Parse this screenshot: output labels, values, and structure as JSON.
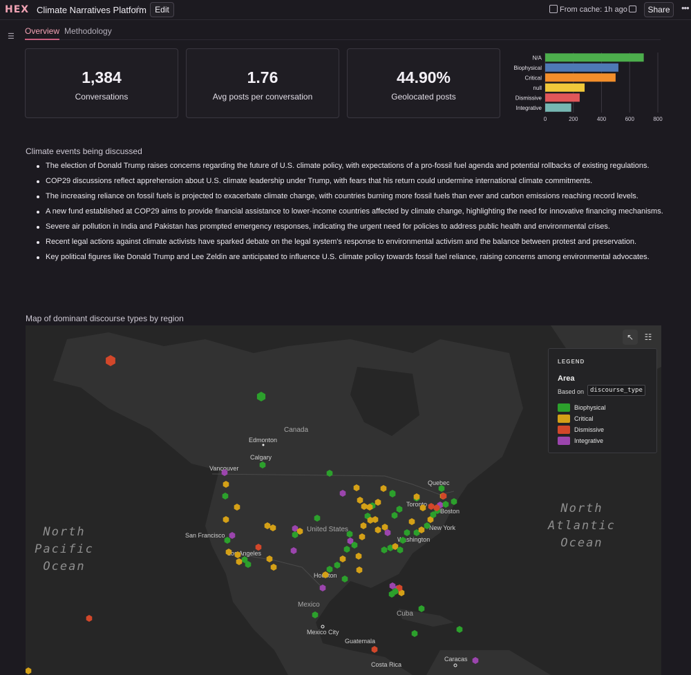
{
  "header": {
    "logo": "HEX",
    "title": "Climate Narratives Platform",
    "edit_label": "Edit",
    "cache_status": "From cache: 1h ago",
    "share_label": "Share"
  },
  "tabs": [
    {
      "label": "Overview",
      "active": true
    },
    {
      "label": "Methodology",
      "active": false
    }
  ],
  "metrics": [
    {
      "value": "1,384",
      "label": "Conversations"
    },
    {
      "value": "1.76",
      "label": "Avg posts per conversation"
    },
    {
      "value": "44.90%",
      "label": "Geolocated posts"
    }
  ],
  "chart_data": {
    "type": "bar",
    "orientation": "horizontal",
    "categories": [
      "N/A",
      "Biophysical",
      "Critical",
      "null",
      "Dismissive",
      "Integrative"
    ],
    "values": [
      700,
      520,
      500,
      280,
      245,
      185
    ],
    "colors": [
      "#4cae4c",
      "#4e79b5",
      "#f28e2b",
      "#f0c83a",
      "#e15759",
      "#76b7b2"
    ],
    "xlim": [
      0,
      800
    ],
    "xticks": [
      "0",
      "200",
      "400",
      "600",
      "800"
    ],
    "title": "",
    "xlabel": "",
    "ylabel": "",
    "grid": true
  },
  "events": {
    "title": "Climate events being discussed",
    "items": [
      "The election of Donald Trump raises concerns regarding the future of U.S. climate policy, with expectations of a pro-fossil fuel agenda and potential rollbacks of existing regulations.",
      "COP29 discussions reflect apprehension about U.S. climate leadership under Trump, with fears that his return could undermine international climate commitments.",
      "The increasing reliance on fossil fuels is projected to exacerbate climate change, with countries burning more fossil fuels than ever and carbon emissions reaching record levels.",
      "A new fund established at COP29 aims to provide financial assistance to lower-income countries affected by climate change, highlighting the need for innovative financing mechanisms.",
      "Severe air pollution in India and Pakistan has prompted emergency responses, indicating the urgent need for policies to address public health and environmental crises.",
      "Recent legal actions against climate activists have sparked debate on the legal system's response to environmental activism and the balance between protest and preservation.",
      "Key political figures like Donald Trump and Lee Zeldin are anticipated to influence U.S. climate policy towards fossil fuel reliance, raising concerns among environmental advocates."
    ]
  },
  "map": {
    "title": "Map of dominant discourse types by region",
    "oceans": [
      {
        "lines": [
          "North",
          "Pacific",
          "Ocean"
        ]
      },
      {
        "lines": [
          "North",
          "Atlantic",
          "Ocean"
        ]
      }
    ],
    "countries": [
      "Canada",
      "United States",
      "Mexico",
      "Cuba",
      "Guatemala"
    ],
    "cities": [
      "Edmonton",
      "Calgary",
      "Vancouver",
      "San Francisco",
      "Los Angeles",
      "Houston",
      "Mexico City",
      "Toronto",
      "Quebec",
      "Boston",
      "New York",
      "Washington",
      "Caracas",
      "Costa Rica"
    ],
    "legend": {
      "header": "LEGEND",
      "title": "Area",
      "based_on": "Based on",
      "field": "discourse_type",
      "items": [
        {
          "label": "Biophysical",
          "color": "#2ca02c"
        },
        {
          "label": "Critical",
          "color": "#d4a017"
        },
        {
          "label": "Dismissive",
          "color": "#d2472a"
        },
        {
          "label": "Integrative",
          "color": "#9b45ad"
        }
      ]
    }
  }
}
